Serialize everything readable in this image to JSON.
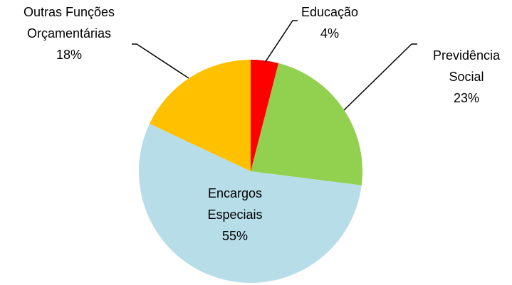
{
  "chart_data": {
    "type": "pie",
    "categories": [
      "Educação",
      "Previdência Social",
      "Encargos Especiais",
      "Outras Funções Orçamentárias"
    ],
    "values": [
      4,
      23,
      55,
      18
    ],
    "value_labels": [
      "4%",
      "23%",
      "55%",
      "18%"
    ],
    "colors": [
      "#ff0000",
      "#92d050",
      "#b7dde8",
      "#ffc000"
    ]
  }
}
